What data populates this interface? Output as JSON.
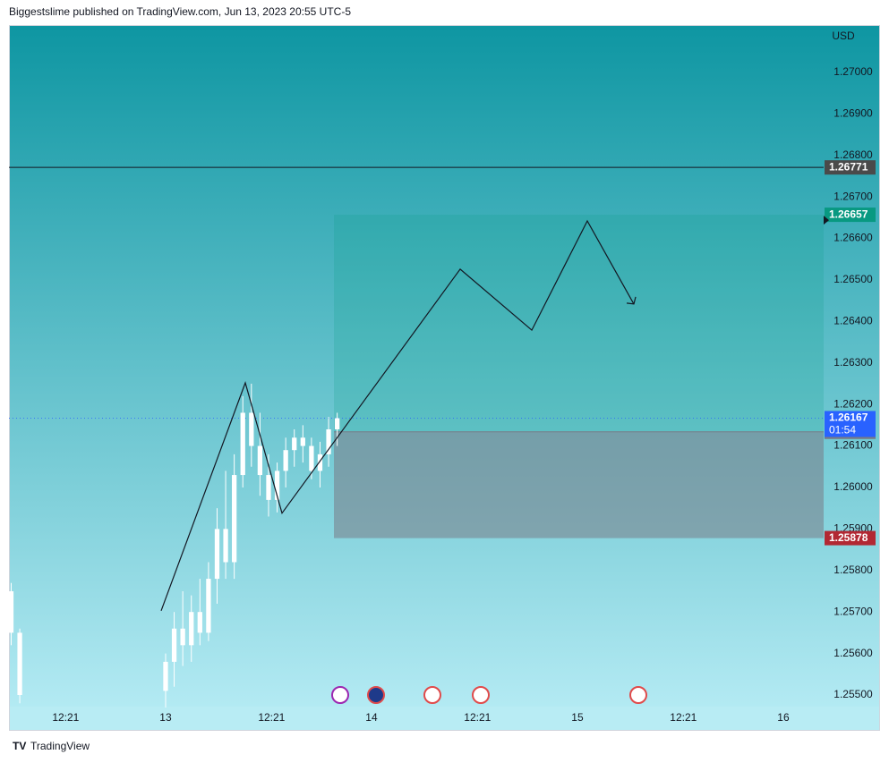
{
  "header": "Biggestslime published on TradingView.com, Jun 13, 2023 20:55 UTC-5",
  "footer": "TradingView",
  "chart_data": {
    "type": "candlestick",
    "currency": "USD",
    "x": [
      6,
      7,
      24,
      25,
      26,
      27,
      28,
      29,
      30,
      31,
      32,
      33,
      34,
      35,
      36,
      37,
      38,
      39,
      40,
      41,
      42,
      43,
      44
    ],
    "open": [
      1.2575,
      1.2565,
      1.2551,
      1.2558,
      1.2566,
      1.2562,
      1.257,
      1.2565,
      1.2578,
      1.259,
      1.2582,
      1.2603,
      1.2618,
      1.261,
      1.2603,
      1.2597,
      1.2604,
      1.2609,
      1.2612,
      1.261,
      1.2604,
      1.2608,
      1.2614
    ],
    "high": [
      1.2577,
      1.2566,
      1.256,
      1.257,
      1.2575,
      1.2574,
      1.2578,
      1.2582,
      1.2595,
      1.2604,
      1.2608,
      1.2622,
      1.2625,
      1.2618,
      1.2608,
      1.2606,
      1.2612,
      1.2614,
      1.2615,
      1.2612,
      1.2611,
      1.2617,
      1.2618
    ],
    "low": [
      1.2562,
      1.2548,
      1.2547,
      1.2552,
      1.2557,
      1.2558,
      1.2562,
      1.2563,
      1.2572,
      1.2578,
      1.2578,
      1.26,
      1.2605,
      1.2598,
      1.2593,
      1.2594,
      1.26,
      1.2605,
      1.2606,
      1.2602,
      1.26,
      1.2605,
      1.261
    ],
    "close": [
      1.2565,
      1.255,
      1.2558,
      1.2566,
      1.2562,
      1.257,
      1.2565,
      1.2578,
      1.259,
      1.2582,
      1.2603,
      1.2618,
      1.261,
      1.2603,
      1.2597,
      1.2604,
      1.2609,
      1.2612,
      1.261,
      1.2604,
      1.2608,
      1.2614,
      1.26167
    ],
    "up_color": "#ffffff",
    "down_color": "#ffffff",
    "xlim": [
      5.74,
      100.7
    ],
    "xticks": [
      {
        "value": 12.35,
        "label": "12:21"
      },
      {
        "value": 24,
        "label": "13"
      },
      {
        "value": 36.35,
        "label": "12:21"
      },
      {
        "value": 48,
        "label": "14"
      },
      {
        "value": 60.35,
        "label": "12:21"
      },
      {
        "value": 72,
        "label": "15"
      },
      {
        "value": 84.35,
        "label": "12:21"
      },
      {
        "value": 96,
        "label": "16"
      }
    ],
    "ylim": [
      1.25472,
      1.27114
    ],
    "yticks": [
      {
        "value": 1.255,
        "label": "1.25500"
      },
      {
        "value": 1.256,
        "label": "1.25600"
      },
      {
        "value": 1.257,
        "label": "1.25700"
      },
      {
        "value": 1.258,
        "label": "1.25800"
      },
      {
        "value": 1.259,
        "label": "1.25900"
      },
      {
        "value": 1.26,
        "label": "1.26000"
      },
      {
        "value": 1.261,
        "label": "1.26100"
      },
      {
        "value": 1.262,
        "label": "1.26200"
      },
      {
        "value": 1.263,
        "label": "1.26300"
      },
      {
        "value": 1.264,
        "label": "1.26400"
      },
      {
        "value": 1.265,
        "label": "1.26500"
      },
      {
        "value": 1.266,
        "label": "1.26600"
      },
      {
        "value": 1.267,
        "label": "1.26700"
      },
      {
        "value": 1.268,
        "label": "1.26800"
      },
      {
        "value": 1.269,
        "label": "1.26900"
      },
      {
        "value": 1.27,
        "label": "1.27000"
      }
    ],
    "drawing": {
      "x": [
        23.48,
        33.29,
        37.57,
        58.33,
        66.68,
        73.15,
        78.58
      ],
      "values": [
        1.25703,
        1.26252,
        1.25938,
        1.26526,
        1.26379,
        1.26642,
        1.26442
      ],
      "color": "#131722"
    },
    "position": {
      "x_start": 43.62,
      "target": 1.26657,
      "entry": 1.26134,
      "stop": 1.25878,
      "target_color": "#089981",
      "entry_color": "#787b86",
      "stop_color": "#b22833"
    },
    "horizontal_line": {
      "value": 1.26771,
      "color": "#4a4a4a"
    },
    "last_price": {
      "value": 1.26167,
      "countdown": "01:54",
      "color": "#2962ff"
    }
  }
}
